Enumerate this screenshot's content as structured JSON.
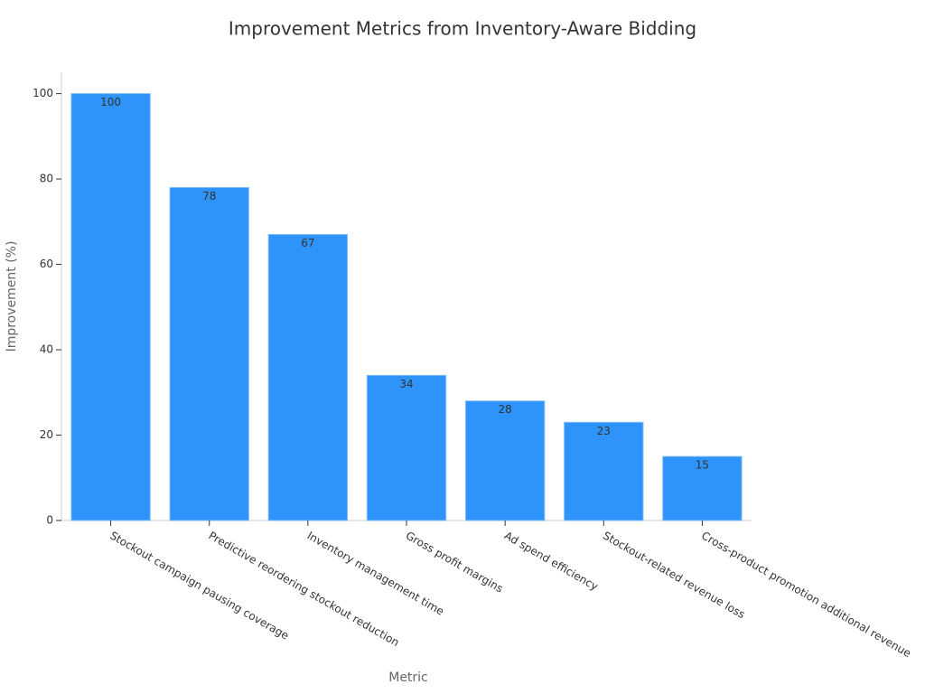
{
  "chart_data": {
    "type": "bar",
    "title": "Improvement Metrics from Inventory-Aware Bidding",
    "x_label": "Metric",
    "y_label": "Improvement (%)",
    "categories": [
      "Stockout campaign pausing coverage",
      "Predictive reordering stockout reduction",
      "Inventory management time",
      "Gross profit margins",
      "Ad spend efficiency",
      "Stockout-related revenue loss",
      "Cross-product promotion additional revenue"
    ],
    "values": [
      100,
      78,
      67,
      34,
      28,
      23,
      15
    ],
    "color": "#2e93fa",
    "ylim": [
      0,
      105
    ],
    "yticks": [
      0,
      20,
      40,
      60,
      80,
      100
    ],
    "grid": false
  }
}
